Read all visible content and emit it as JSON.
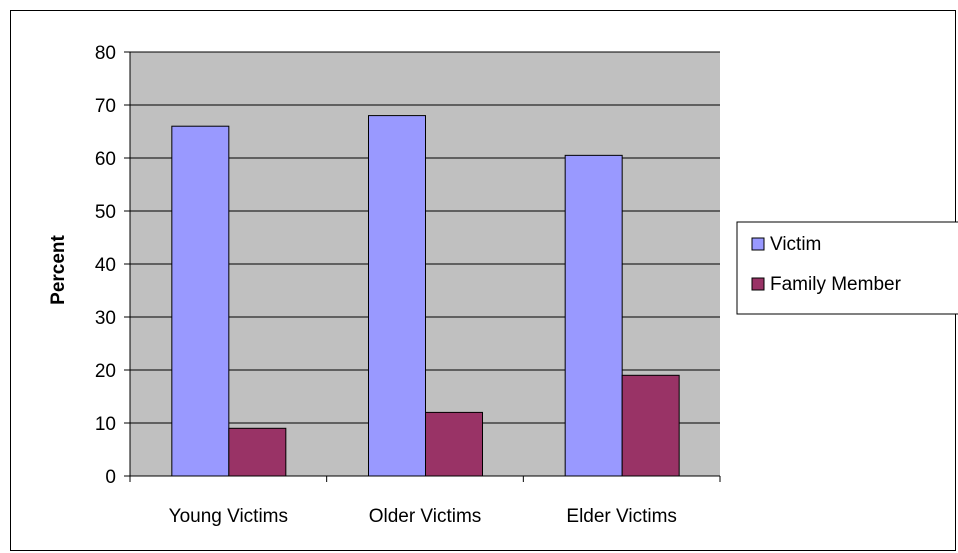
{
  "chart_data": {
    "type": "bar",
    "title": "",
    "xlabel": "",
    "ylabel": "Percent",
    "ylim": [
      0,
      80
    ],
    "yticks": [
      0,
      10,
      20,
      30,
      40,
      50,
      60,
      70,
      80
    ],
    "categories": [
      "Young Victims",
      "Older Victims",
      "Elder Victims"
    ],
    "series": [
      {
        "name": "Victim",
        "color": "#9999ff",
        "values": [
          66,
          68,
          60.5
        ]
      },
      {
        "name": "Family Member",
        "color": "#993366",
        "values": [
          9,
          12,
          19
        ]
      }
    ],
    "plot_background": "#c0c0c0",
    "grid": true,
    "legend_position": "right"
  }
}
